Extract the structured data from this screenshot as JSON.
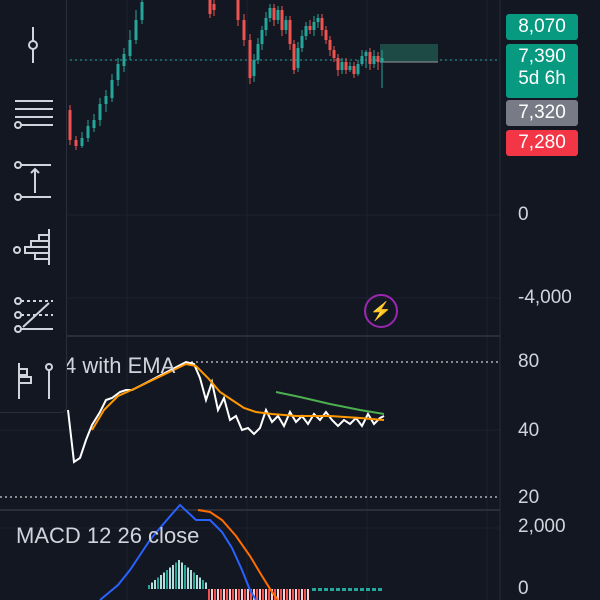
{
  "price_axis": {
    "zero_label": "0",
    "neg_label": "-4,000"
  },
  "price_badges": {
    "high": "8,070",
    "current": "7,390",
    "countdown": "5d 6h",
    "mid": "7,320",
    "low": "7,280"
  },
  "rsi_pane": {
    "title": "4 with EMA",
    "levels": [
      "80",
      "40",
      "20"
    ]
  },
  "macd_pane": {
    "title": "MACD 12 26 close",
    "levels": [
      "2,000",
      "0"
    ]
  },
  "colors": {
    "background": "#131722",
    "up": "#26a69a",
    "down": "#ef5350",
    "badge_high": "#089981",
    "badge_current": "#089981",
    "badge_mid": "#787b86",
    "badge_low": "#f23645",
    "rsi_line": "#ffffff",
    "rsi_ema": "#ff9800",
    "rsi_trend": "#4caf50",
    "macd_line": "#2962ff",
    "signal_line": "#ff6d00"
  },
  "toolbar": {
    "tools": [
      "cursor-tool-icon",
      "horizontal-lines-icon",
      "measure-tool-icon",
      "volume-profile-icon",
      "pattern-tool-icon",
      "anchored-tool-icon"
    ]
  },
  "alerts": {
    "icon": "lightning-icon",
    "glyph": "⚡"
  }
}
